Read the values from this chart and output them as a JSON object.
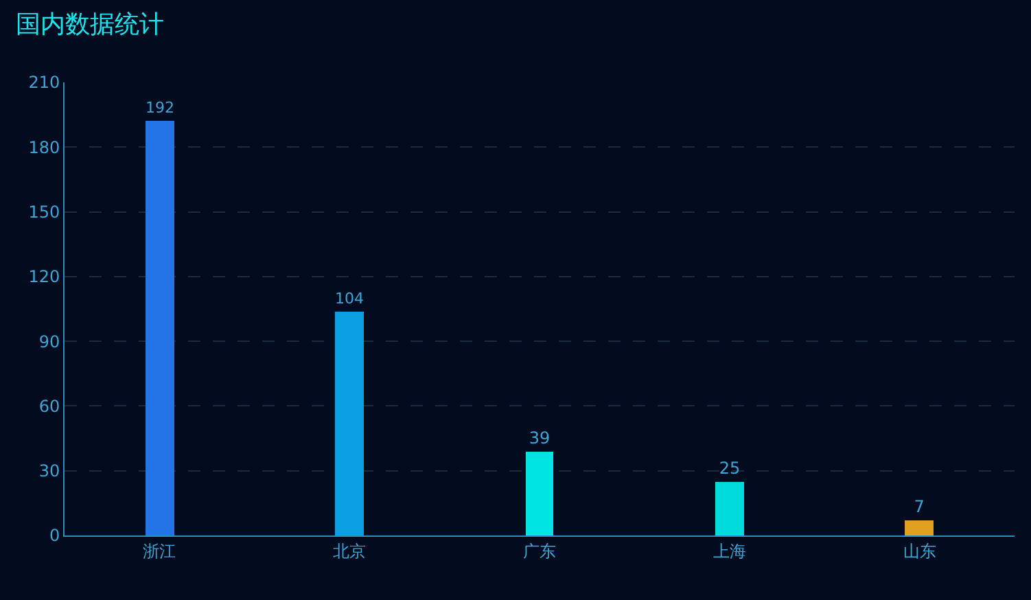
{
  "chart_data": {
    "type": "bar",
    "title": "国内数据统计",
    "categories": [
      "浙江",
      "北京",
      "广东",
      "上海",
      "山东"
    ],
    "values": [
      192,
      104,
      39,
      25,
      7
    ],
    "colors": [
      "#2374e6",
      "#0a9fe0",
      "#00e4e4",
      "#00dcdc",
      "#e0a020"
    ],
    "data_labels": true,
    "ylim": [
      0,
      210
    ],
    "yticks": [
      0,
      30,
      60,
      90,
      120,
      150,
      180,
      210
    ],
    "grid": "y",
    "legend": false
  }
}
